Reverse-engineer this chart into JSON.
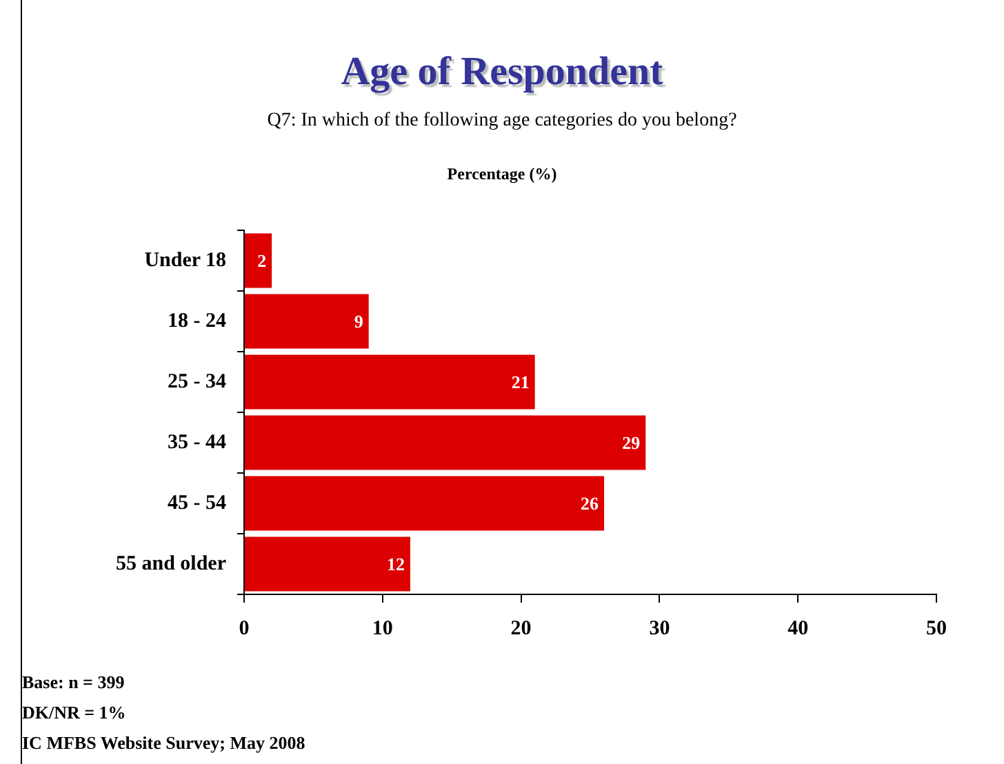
{
  "chart_data": {
    "type": "bar",
    "orientation": "horizontal",
    "title": "Age of Respondent",
    "subtitle": "Q7: In which of the following age categories do you belong?",
    "xlabel": "Percentage (%)",
    "categories": [
      "Under 18",
      "18 - 24",
      "25 - 34",
      "35 - 44",
      "45 - 54",
      "55 and older"
    ],
    "values": [
      2,
      9,
      21,
      29,
      26,
      12
    ],
    "color": "#dd0000",
    "xlim": [
      0,
      50
    ],
    "xticks": [
      0,
      10,
      20,
      30,
      40,
      50
    ],
    "grid": false,
    "legend": false,
    "data_labels": true,
    "annotations": [
      "Base: n = 399",
      "DK/NR = 1%",
      "IC MFBS Website Survey; May 2008"
    ]
  }
}
